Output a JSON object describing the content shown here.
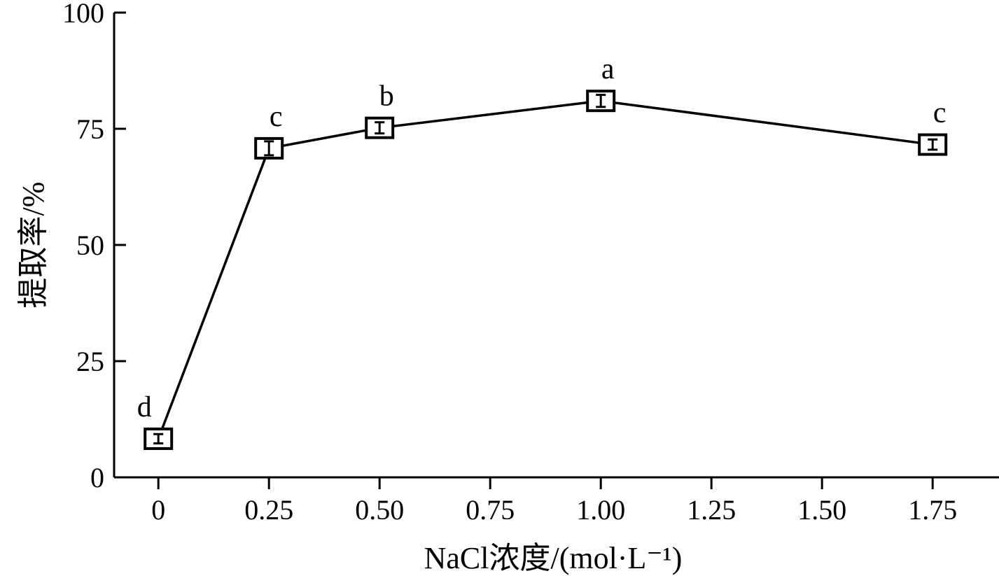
{
  "chart_data": {
    "type": "line",
    "xlabel": "NaCl浓度/(mol·L⁻¹)",
    "ylabel": "提取率/%",
    "ylim": [
      0,
      100
    ],
    "xlim": [
      -0.1,
      1.9
    ],
    "x_ticks": [
      0,
      0.25,
      0.5,
      0.75,
      1.0,
      1.25,
      1.5,
      1.75
    ],
    "x_tick_labels": [
      "0",
      "0.25",
      "0.50",
      "0.75",
      "1.00",
      "1.25",
      "1.50",
      "1.75"
    ],
    "y_ticks": [
      0,
      25,
      50,
      75,
      100
    ],
    "y_tick_labels": [
      "0",
      "25",
      "50",
      "75",
      "100"
    ],
    "grid": false,
    "series": [
      {
        "x": [
          0,
          0.25,
          0.5,
          1.0,
          1.75
        ],
        "values": [
          8.3,
          70.8,
          75.2,
          81.0,
          71.6
        ],
        "error": [
          1.0,
          1.5,
          1.2,
          1.3,
          1.1
        ],
        "marker": "open-square",
        "color": "#000000",
        "point_labels": [
          "d",
          "c",
          "b",
          "a",
          "c"
        ]
      }
    ]
  }
}
